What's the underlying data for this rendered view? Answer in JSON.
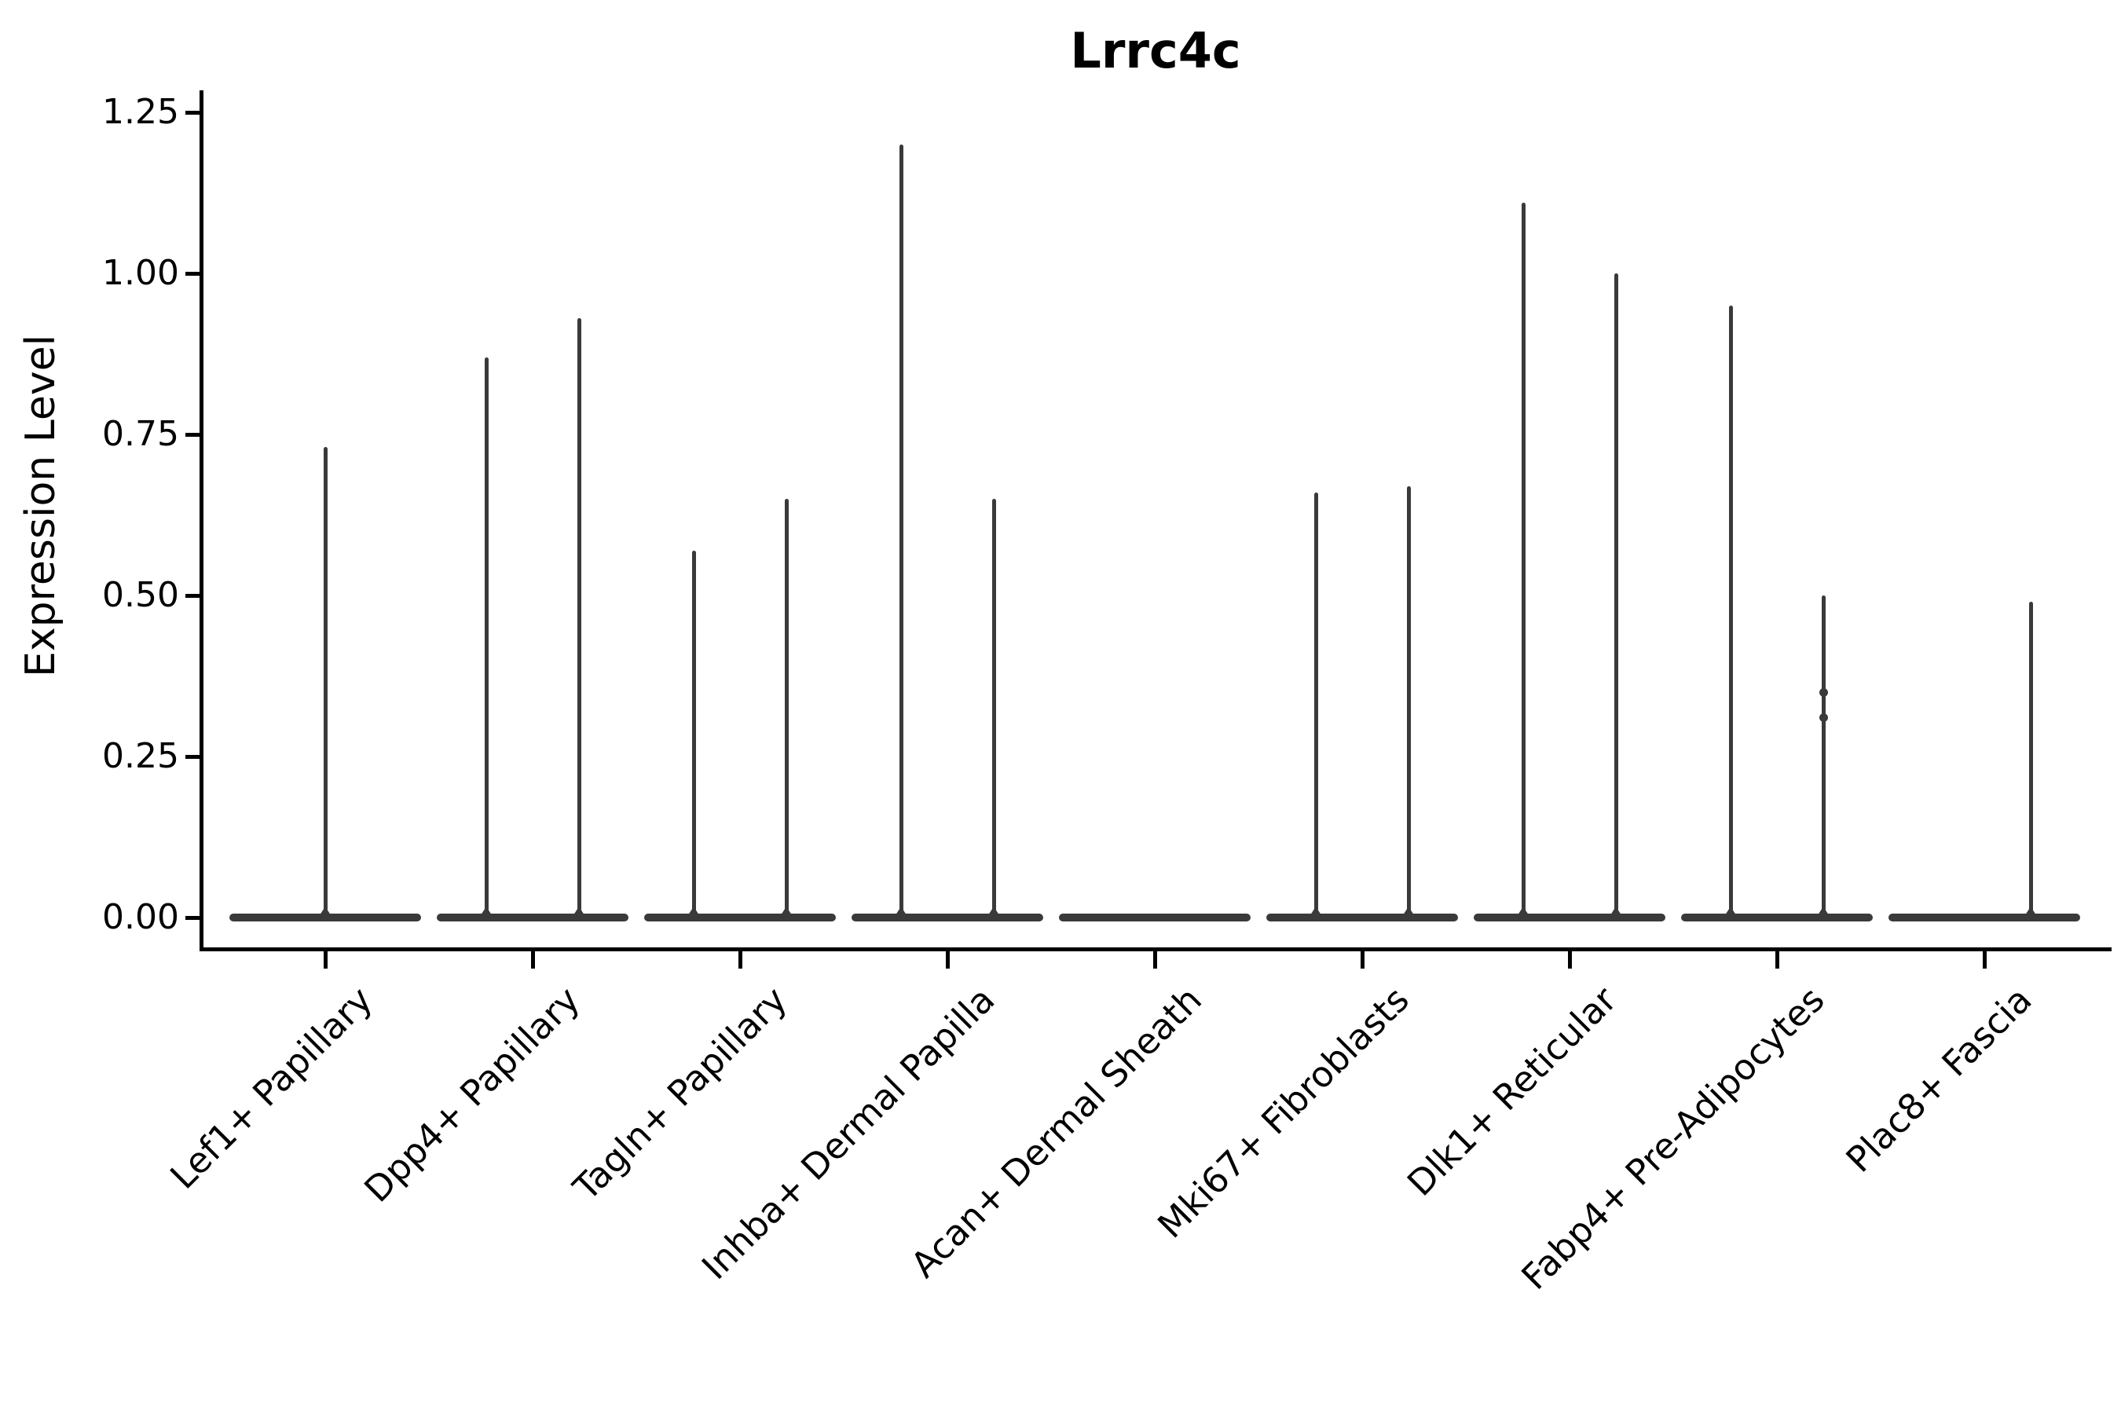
{
  "title": "Lrrc4c",
  "axes": {
    "y": {
      "label": "Expression Level"
    },
    "x": {
      "rotation_deg": 45
    }
  },
  "colors": {
    "violin": "#3a3a3a",
    "axis": "#000000",
    "text": "#000000"
  },
  "chart_data": {
    "type": "violin",
    "title": "Lrrc4c",
    "xlabel": "",
    "ylabel": "Expression Level",
    "ylim": [
      -0.05,
      1.28
    ],
    "yticks": [
      0.0,
      0.25,
      0.5,
      0.75,
      1.0,
      1.25
    ],
    "ytick_labels": [
      "0.00",
      "0.25",
      "0.50",
      "0.75",
      "1.00",
      "1.25"
    ],
    "grid": false,
    "legend": "none",
    "categories": [
      "Lef1+ Papillary",
      "Dpp4+ Papillary",
      "Tagln+ Papillary",
      "Inhba+ Dermal Papilla",
      "Acan+ Dermal Sheath",
      "Mki67+ Fibroblasts",
      "Dlk1+ Reticular",
      "Fabp4+ Pre-Adipocytes",
      "Plac8+ Fascia"
    ],
    "description": "Violin plot of Lrrc4c expression; each category shows a flattened violin body at 0 with thin density spikes rising to the maximum expressed values.",
    "violins": [
      {
        "category": "Lef1+ Papillary",
        "baseline": 0,
        "spikes": [
          {
            "pos": "center",
            "max": 0.73
          }
        ]
      },
      {
        "category": "Dpp4+ Papillary",
        "baseline": 0,
        "spikes": [
          {
            "pos": "left",
            "max": 0.87
          },
          {
            "pos": "right",
            "max": 0.93
          }
        ]
      },
      {
        "category": "Tagln+ Papillary",
        "baseline": 0,
        "spikes": [
          {
            "pos": "left",
            "max": 0.57
          },
          {
            "pos": "right",
            "max": 0.65
          }
        ]
      },
      {
        "category": "Inhba+ Dermal Papilla",
        "baseline": 0,
        "spikes": [
          {
            "pos": "left",
            "max": 1.2
          },
          {
            "pos": "right",
            "max": 0.65
          }
        ]
      },
      {
        "category": "Acan+ Dermal Sheath",
        "baseline": 0,
        "spikes": []
      },
      {
        "category": "Mki67+ Fibroblasts",
        "baseline": 0,
        "spikes": [
          {
            "pos": "left",
            "max": 0.66
          },
          {
            "pos": "right",
            "max": 0.67
          }
        ]
      },
      {
        "category": "Dlk1+ Reticular",
        "baseline": 0,
        "spikes": [
          {
            "pos": "left",
            "max": 1.11
          },
          {
            "pos": "right",
            "max": 1.0
          }
        ]
      },
      {
        "category": "Fabp4+ Pre-Adipocytes",
        "baseline": 0,
        "spikes": [
          {
            "pos": "left",
            "max": 0.95
          },
          {
            "pos": "right",
            "max": 0.5,
            "knots": [
              0.35,
              0.31
            ]
          }
        ]
      },
      {
        "category": "Plac8+ Fascia",
        "baseline": 0,
        "spikes": [
          {
            "pos": "right",
            "max": 0.49
          }
        ]
      }
    ]
  }
}
